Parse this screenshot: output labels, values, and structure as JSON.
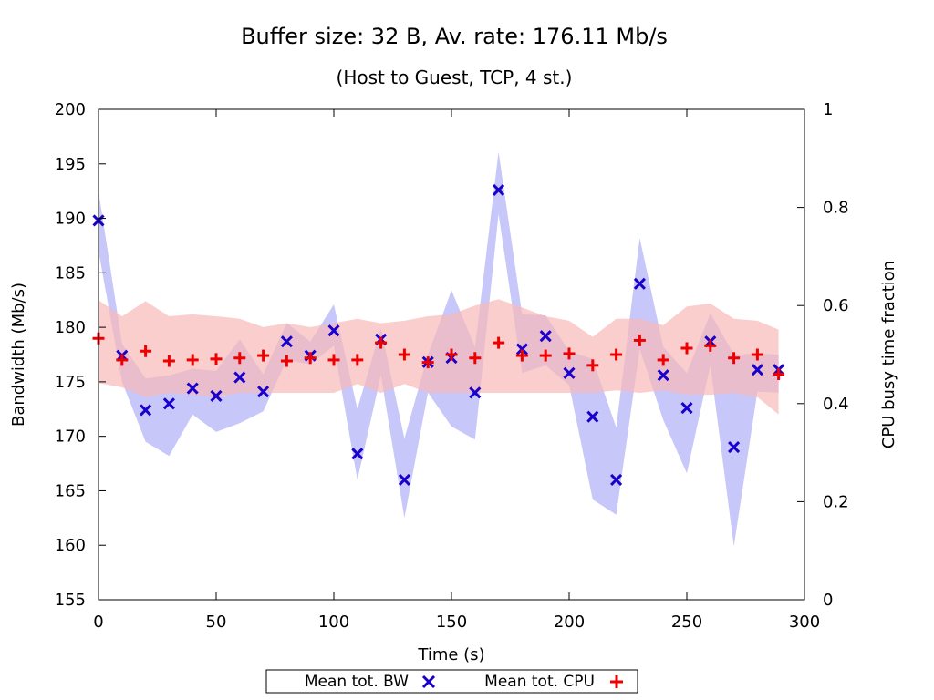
{
  "chart_data": {
    "type": "scatter",
    "title": "Buffer size: 32 B, Av. rate: 176.11 Mb/s",
    "subtitle": "(Host to Guest, TCP, 4 st.)",
    "xlabel": "Time (s)",
    "ylabel": "Bandwidth (Mb/s)",
    "y2label": "CPU busy time fraction",
    "xlim": [
      0,
      300
    ],
    "ylim": [
      155,
      200
    ],
    "y2lim": [
      0,
      1
    ],
    "x_ticks": [
      0,
      50,
      100,
      150,
      200,
      250,
      300
    ],
    "y_ticks": [
      155,
      160,
      165,
      170,
      175,
      180,
      185,
      190,
      195,
      200
    ],
    "y2_ticks": [
      0,
      0.2,
      0.4,
      0.6,
      0.8,
      1
    ],
    "grid": false,
    "legend_position": "bottom-center",
    "colors": {
      "bw_marker": "#1a00cc",
      "bw_band": "#c4c4f9",
      "cpu_marker": "#ee0000",
      "cpu_band": "#f9b9b9"
    },
    "series": [
      {
        "name": "Mean tot. BW",
        "marker": "x",
        "axis": "y",
        "x": [
          0,
          10,
          20,
          30,
          40,
          50,
          60,
          70,
          80,
          90,
          100,
          110,
          120,
          130,
          140,
          150,
          160,
          170,
          180,
          190,
          200,
          210,
          220,
          230,
          240,
          250,
          260,
          270,
          280,
          289
        ],
        "y": [
          189.8,
          177.4,
          172.4,
          173.0,
          174.4,
          173.7,
          175.4,
          174.1,
          178.7,
          177.4,
          179.7,
          168.4,
          178.9,
          166.0,
          176.8,
          177.2,
          174.0,
          192.6,
          178.0,
          179.2,
          175.8,
          171.8,
          166.0,
          184.0,
          175.6,
          172.6,
          178.7,
          169.0,
          176.1,
          176.1
        ],
        "band_low": [
          187.0,
          175.0,
          169.5,
          168.2,
          172.0,
          170.4,
          171.2,
          172.3,
          177.0,
          176.6,
          178.3,
          166.0,
          175.6,
          162.5,
          174.0,
          170.9,
          169.7,
          190.4,
          175.8,
          176.5,
          174.7,
          164.2,
          162.8,
          178.0,
          171.5,
          166.6,
          176.5,
          159.9,
          174.1,
          174.0
        ],
        "band_high": [
          192.5,
          178.5,
          175.3,
          175.6,
          176.2,
          176.0,
          178.9,
          175.7,
          180.4,
          178.7,
          182.1,
          172.5,
          179.9,
          169.8,
          177.5,
          183.4,
          178.2,
          196.1,
          181.2,
          181.1,
          177.8,
          177.1,
          170.8,
          188.2,
          178.2,
          175.8,
          181.3,
          177.5,
          177.6,
          177.5
        ]
      },
      {
        "name": "Mean tot. CPU",
        "marker": "+",
        "axis": "y2",
        "x": [
          0,
          10,
          20,
          30,
          40,
          50,
          60,
          70,
          80,
          90,
          100,
          110,
          120,
          130,
          140,
          150,
          160,
          170,
          180,
          190,
          200,
          210,
          220,
          230,
          240,
          250,
          260,
          270,
          280,
          289
        ],
        "y": [
          0.533,
          0.489,
          0.507,
          0.487,
          0.489,
          0.491,
          0.493,
          0.498,
          0.487,
          0.493,
          0.489,
          0.489,
          0.524,
          0.5,
          0.484,
          0.5,
          0.493,
          0.524,
          0.498,
          0.498,
          0.502,
          0.478,
          0.5,
          0.529,
          0.489,
          0.513,
          0.518,
          0.493,
          0.5,
          0.46
        ],
        "band_low": [
          0.442,
          0.433,
          0.413,
          0.422,
          0.418,
          0.413,
          0.422,
          0.422,
          0.422,
          0.422,
          0.422,
          0.44,
          0.422,
          0.44,
          0.422,
          0.422,
          0.422,
          0.422,
          0.422,
          0.422,
          0.422,
          0.422,
          0.427,
          0.422,
          0.427,
          0.418,
          0.418,
          0.422,
          0.413,
          0.378
        ],
        "band_high": [
          0.611,
          0.578,
          0.609,
          0.578,
          0.582,
          0.578,
          0.573,
          0.556,
          0.564,
          0.556,
          0.564,
          0.573,
          0.564,
          0.569,
          0.578,
          0.582,
          0.6,
          0.613,
          0.596,
          0.578,
          0.569,
          0.536,
          0.573,
          0.573,
          0.56,
          0.598,
          0.604,
          0.573,
          0.569,
          0.551
        ]
      }
    ]
  }
}
